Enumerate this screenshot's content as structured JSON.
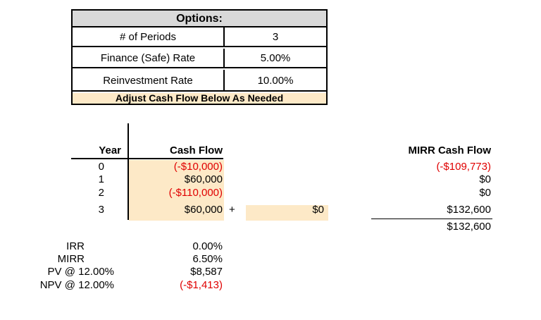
{
  "options": {
    "title": "Options:",
    "rows": [
      {
        "label": "# of Periods",
        "value": "3"
      },
      {
        "label": "Finance (Safe) Rate",
        "value": "5.00%"
      },
      {
        "label": "Reinvestment Rate",
        "value": "10.00%"
      }
    ],
    "footer": "Adjust Cash Flow Below As Needed"
  },
  "cashflow": {
    "year_header": "Year",
    "cf_header": "Cash Flow",
    "mirr_header": "MIRR Cash Flow",
    "years": [
      "0",
      "1",
      "2",
      "3"
    ],
    "flows": [
      "(-$10,000)",
      "$60,000",
      "(-$110,000)",
      "$60,000"
    ],
    "plus": "+",
    "extra": "$0",
    "mirr_flows": [
      "(-$109,773)",
      "$0",
      "$0",
      "$132,600"
    ],
    "mirr_total": "$132,600"
  },
  "metrics": [
    {
      "label": "IRR",
      "value": "0.00%"
    },
    {
      "label": "MIRR",
      "value": "6.50%"
    },
    {
      "label": "PV @ 12.00%",
      "value": "$8,587"
    },
    {
      "label": "NPV @ 12.00%",
      "value": "(-$1,413)"
    }
  ],
  "colors": {
    "input_bg": "#fde9c7",
    "header_bg": "#d9d9d9",
    "negative": "#e00000"
  }
}
